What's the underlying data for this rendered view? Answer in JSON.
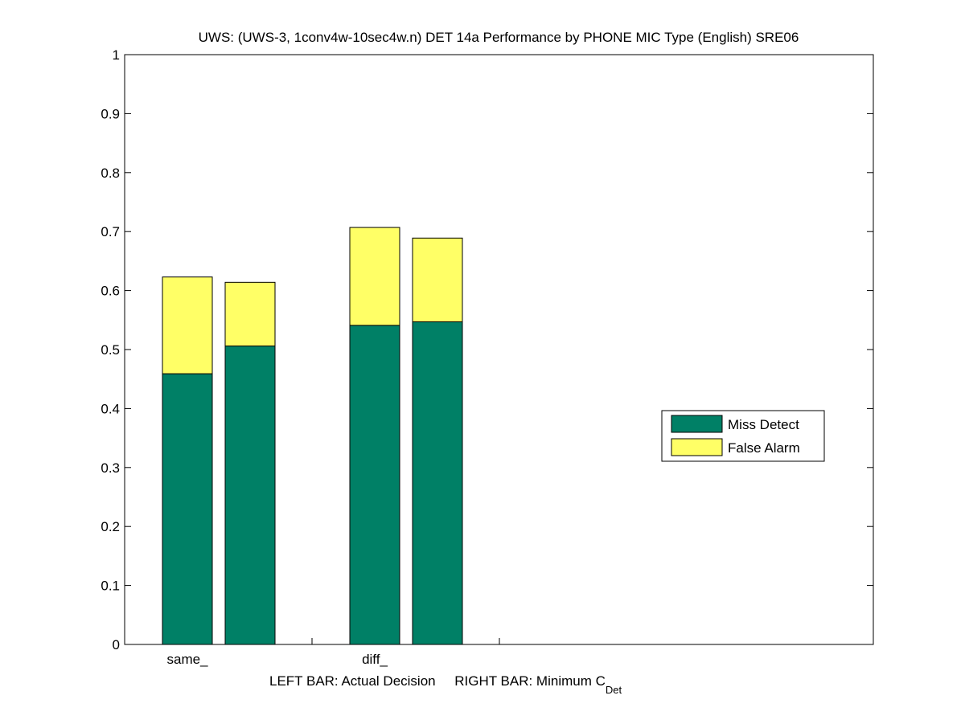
{
  "chart_data": {
    "type": "bar",
    "stacked": true,
    "title": "UWS: (UWS-3, 1conv4w-10sec4w.n) DET 14a Performance by PHONE MIC Type (English) SRE06",
    "xlabel_main": "LEFT BAR: Actual Decision     RIGHT BAR: Minimum C",
    "xlabel_subscript": "Det",
    "ylabel": "",
    "ylim": [
      0,
      1
    ],
    "yticks": [
      "0",
      "0.1",
      "0.2",
      "0.3",
      "0.4",
      "0.5",
      "0.6",
      "0.7",
      "0.8",
      "0.9",
      "1"
    ],
    "categories": [
      "same_",
      "diff_"
    ],
    "grid": false,
    "legend_position": "right",
    "colors": {
      "miss": "#008066",
      "false_alarm": "#ffff66"
    },
    "series": [
      {
        "name": "Miss Detect",
        "values": [
          [
            0.459,
            0.506
          ],
          [
            0.541,
            0.547
          ]
        ]
      },
      {
        "name": "False Alarm",
        "values": [
          [
            0.164,
            0.108
          ],
          [
            0.166,
            0.142
          ]
        ]
      }
    ]
  }
}
